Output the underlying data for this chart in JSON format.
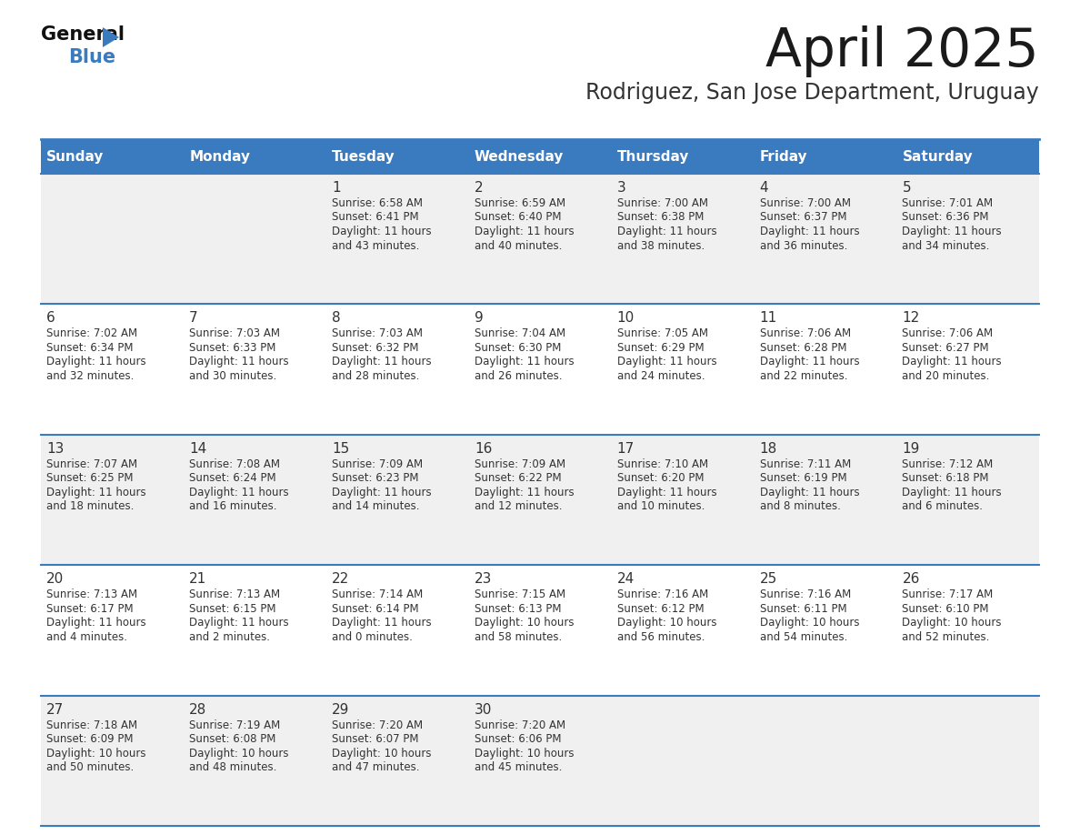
{
  "title": "April 2025",
  "subtitle": "Rodriguez, San Jose Department, Uruguay",
  "header_color": "#3a7abf",
  "header_text_color": "#ffffff",
  "cell_bg_odd": "#f0f0f0",
  "cell_bg_even": "#ffffff",
  "day_number_color": "#333333",
  "info_text_color": "#333333",
  "border_color": "#3a7abf",
  "days_of_week": [
    "Sunday",
    "Monday",
    "Tuesday",
    "Wednesday",
    "Thursday",
    "Friday",
    "Saturday"
  ],
  "weeks": [
    [
      {
        "day": "",
        "sunrise": "",
        "sunset": "",
        "daylight": ""
      },
      {
        "day": "",
        "sunrise": "",
        "sunset": "",
        "daylight": ""
      },
      {
        "day": "1",
        "sunrise": "6:58 AM",
        "sunset": "6:41 PM",
        "daylight": "11 hours and 43 minutes."
      },
      {
        "day": "2",
        "sunrise": "6:59 AM",
        "sunset": "6:40 PM",
        "daylight": "11 hours and 40 minutes."
      },
      {
        "day": "3",
        "sunrise": "7:00 AM",
        "sunset": "6:38 PM",
        "daylight": "11 hours and 38 minutes."
      },
      {
        "day": "4",
        "sunrise": "7:00 AM",
        "sunset": "6:37 PM",
        "daylight": "11 hours and 36 minutes."
      },
      {
        "day": "5",
        "sunrise": "7:01 AM",
        "sunset": "6:36 PM",
        "daylight": "11 hours and 34 minutes."
      }
    ],
    [
      {
        "day": "6",
        "sunrise": "7:02 AM",
        "sunset": "6:34 PM",
        "daylight": "11 hours and 32 minutes."
      },
      {
        "day": "7",
        "sunrise": "7:03 AM",
        "sunset": "6:33 PM",
        "daylight": "11 hours and 30 minutes."
      },
      {
        "day": "8",
        "sunrise": "7:03 AM",
        "sunset": "6:32 PM",
        "daylight": "11 hours and 28 minutes."
      },
      {
        "day": "9",
        "sunrise": "7:04 AM",
        "sunset": "6:30 PM",
        "daylight": "11 hours and 26 minutes."
      },
      {
        "day": "10",
        "sunrise": "7:05 AM",
        "sunset": "6:29 PM",
        "daylight": "11 hours and 24 minutes."
      },
      {
        "day": "11",
        "sunrise": "7:06 AM",
        "sunset": "6:28 PM",
        "daylight": "11 hours and 22 minutes."
      },
      {
        "day": "12",
        "sunrise": "7:06 AM",
        "sunset": "6:27 PM",
        "daylight": "11 hours and 20 minutes."
      }
    ],
    [
      {
        "day": "13",
        "sunrise": "7:07 AM",
        "sunset": "6:25 PM",
        "daylight": "11 hours and 18 minutes."
      },
      {
        "day": "14",
        "sunrise": "7:08 AM",
        "sunset": "6:24 PM",
        "daylight": "11 hours and 16 minutes."
      },
      {
        "day": "15",
        "sunrise": "7:09 AM",
        "sunset": "6:23 PM",
        "daylight": "11 hours and 14 minutes."
      },
      {
        "day": "16",
        "sunrise": "7:09 AM",
        "sunset": "6:22 PM",
        "daylight": "11 hours and 12 minutes."
      },
      {
        "day": "17",
        "sunrise": "7:10 AM",
        "sunset": "6:20 PM",
        "daylight": "11 hours and 10 minutes."
      },
      {
        "day": "18",
        "sunrise": "7:11 AM",
        "sunset": "6:19 PM",
        "daylight": "11 hours and 8 minutes."
      },
      {
        "day": "19",
        "sunrise": "7:12 AM",
        "sunset": "6:18 PM",
        "daylight": "11 hours and 6 minutes."
      }
    ],
    [
      {
        "day": "20",
        "sunrise": "7:13 AM",
        "sunset": "6:17 PM",
        "daylight": "11 hours and 4 minutes."
      },
      {
        "day": "21",
        "sunrise": "7:13 AM",
        "sunset": "6:15 PM",
        "daylight": "11 hours and 2 minutes."
      },
      {
        "day": "22",
        "sunrise": "7:14 AM",
        "sunset": "6:14 PM",
        "daylight": "11 hours and 0 minutes."
      },
      {
        "day": "23",
        "sunrise": "7:15 AM",
        "sunset": "6:13 PM",
        "daylight": "10 hours and 58 minutes."
      },
      {
        "day": "24",
        "sunrise": "7:16 AM",
        "sunset": "6:12 PM",
        "daylight": "10 hours and 56 minutes."
      },
      {
        "day": "25",
        "sunrise": "7:16 AM",
        "sunset": "6:11 PM",
        "daylight": "10 hours and 54 minutes."
      },
      {
        "day": "26",
        "sunrise": "7:17 AM",
        "sunset": "6:10 PM",
        "daylight": "10 hours and 52 minutes."
      }
    ],
    [
      {
        "day": "27",
        "sunrise": "7:18 AM",
        "sunset": "6:09 PM",
        "daylight": "10 hours and 50 minutes."
      },
      {
        "day": "28",
        "sunrise": "7:19 AM",
        "sunset": "6:08 PM",
        "daylight": "10 hours and 48 minutes."
      },
      {
        "day": "29",
        "sunrise": "7:20 AM",
        "sunset": "6:07 PM",
        "daylight": "10 hours and 47 minutes."
      },
      {
        "day": "30",
        "sunrise": "7:20 AM",
        "sunset": "6:06 PM",
        "daylight": "10 hours and 45 minutes."
      },
      {
        "day": "",
        "sunrise": "",
        "sunset": "",
        "daylight": ""
      },
      {
        "day": "",
        "sunrise": "",
        "sunset": "",
        "daylight": ""
      },
      {
        "day": "",
        "sunrise": "",
        "sunset": "",
        "daylight": ""
      }
    ]
  ],
  "fig_width": 11.88,
  "fig_height": 9.18,
  "dpi": 100
}
